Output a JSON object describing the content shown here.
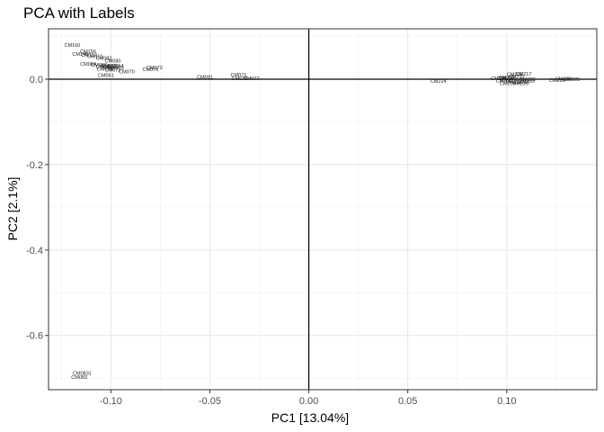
{
  "chart_data": {
    "type": "scatter",
    "title": "PCA with Labels",
    "xlabel": "PC1 [13.04%]",
    "ylabel": "PC2 [2.1%]",
    "xlim": [
      -0.1315,
      0.1455
    ],
    "ylim": [
      -0.727,
      0.118
    ],
    "xticks": [
      -0.1,
      -0.05,
      0.0,
      0.05,
      0.1
    ],
    "xtick_labels": [
      "-0.10",
      "-0.05",
      "0.00",
      "0.05",
      "0.10"
    ],
    "yticks": [
      0.0,
      -0.2,
      -0.4,
      -0.6
    ],
    "ytick_labels": [
      "0.0",
      "-0.2",
      "-0.4",
      "-0.6"
    ],
    "grid": true,
    "reference_lines": {
      "x": 0,
      "y": 0
    },
    "points": [
      {
        "label": "CM160",
        "x": -0.1195,
        "y": 0.08
      },
      {
        "label": "CM156",
        "x": -0.1115,
        "y": 0.065
      },
      {
        "label": "CM148",
        "x": -0.1155,
        "y": 0.059
      },
      {
        "label": "CM152",
        "x": -0.111,
        "y": 0.057
      },
      {
        "label": "CM110",
        "x": -0.108,
        "y": 0.054
      },
      {
        "label": "CM082",
        "x": -0.1035,
        "y": 0.05
      },
      {
        "label": "CM080",
        "x": -0.099,
        "y": 0.043
      },
      {
        "label": "CM084",
        "x": -0.1115,
        "y": 0.036
      },
      {
        "label": "CM066",
        "x": -0.106,
        "y": 0.034
      },
      {
        "label": "CM077",
        "x": -0.101,
        "y": 0.032
      },
      {
        "label": "CM064",
        "x": -0.0975,
        "y": 0.032
      },
      {
        "label": "CM073",
        "x": -0.1035,
        "y": 0.03
      },
      {
        "label": "CM069",
        "x": -0.1,
        "y": 0.028
      },
      {
        "label": "CM079",
        "x": -0.0975,
        "y": 0.026
      },
      {
        "label": "CM075",
        "x": -0.103,
        "y": 0.024
      },
      {
        "label": "CM072",
        "x": -0.099,
        "y": 0.022
      },
      {
        "label": "CM070",
        "x": -0.092,
        "y": 0.018
      },
      {
        "label": "CM061",
        "x": -0.1025,
        "y": 0.009
      },
      {
        "label": "CM073",
        "x": -0.078,
        "y": 0.027
      },
      {
        "label": "CM076",
        "x": -0.08,
        "y": 0.023
      },
      {
        "label": "CM091",
        "x": -0.0525,
        "y": 0.005
      },
      {
        "label": "CM071",
        "x": -0.0355,
        "y": 0.011
      },
      {
        "label": "CM076",
        "x": -0.035,
        "y": 0.002
      },
      {
        "label": "CM077",
        "x": -0.029,
        "y": 0.002
      },
      {
        "label": "CM224",
        "x": 0.0655,
        "y": -0.004
      },
      {
        "label": "CM205",
        "x": 0.096,
        "y": 0.002
      },
      {
        "label": "CM207",
        "x": 0.1,
        "y": 0.004
      },
      {
        "label": "CM203",
        "x": 0.099,
        "y": 0.002
      },
      {
        "label": "CM229",
        "x": 0.101,
        "y": -0.001
      },
      {
        "label": "CM201",
        "x": 0.0985,
        "y": -0.003
      },
      {
        "label": "CM208",
        "x": 0.104,
        "y": 0.012
      },
      {
        "label": "CM217",
        "x": 0.1085,
        "y": 0.013
      },
      {
        "label": "CM212",
        "x": 0.105,
        "y": 0.006
      },
      {
        "label": "CM213",
        "x": 0.1035,
        "y": -0.005
      },
      {
        "label": "CM227",
        "x": 0.1075,
        "y": -0.006
      },
      {
        "label": "CM220",
        "x": 0.11,
        "y": -0.004
      },
      {
        "label": "CM222",
        "x": 0.1105,
        "y": 0.0
      },
      {
        "label": "CM230",
        "x": 0.1285,
        "y": 0.001
      },
      {
        "label": "CM225",
        "x": 0.133,
        "y": 0.0
      },
      {
        "label": "CM228",
        "x": 0.1255,
        "y": -0.002
      },
      {
        "label": "CM209",
        "x": 0.1005,
        "y": -0.009
      },
      {
        "label": "CM226",
        "x": 0.107,
        "y": -0.009
      },
      {
        "label": "CM0831",
        "x": -0.1145,
        "y": -0.688
      },
      {
        "label": "CM083",
        "x": -0.116,
        "y": -0.697
      }
    ]
  }
}
